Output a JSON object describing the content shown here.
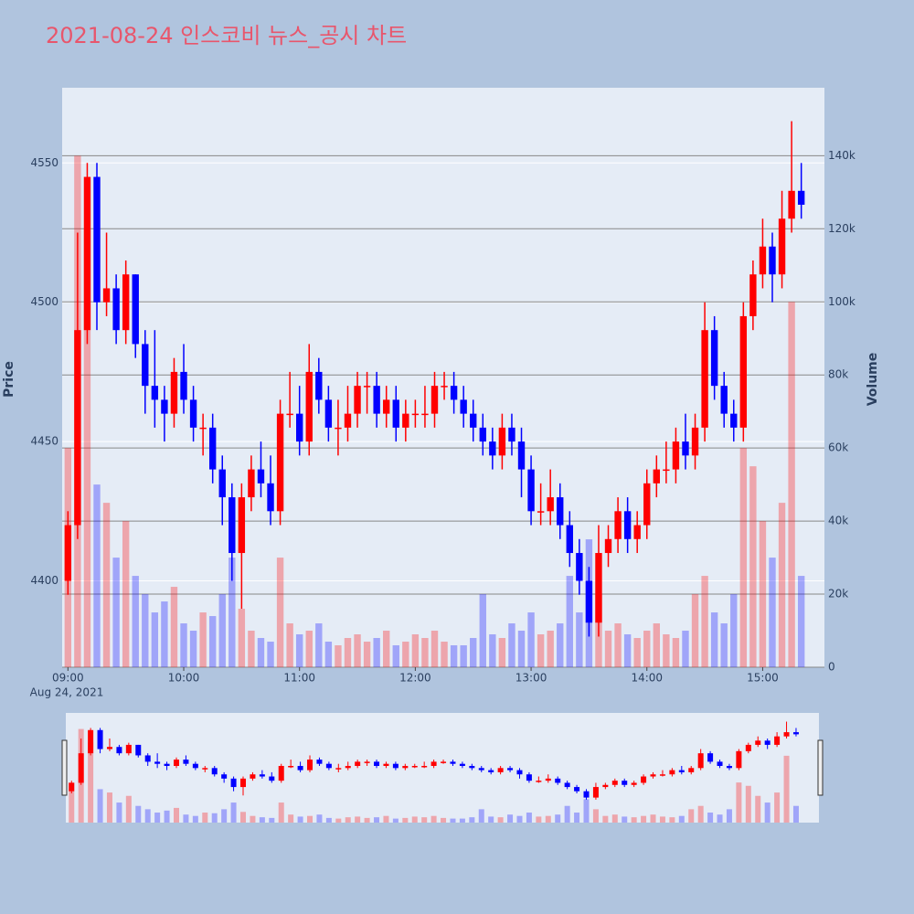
{
  "chart_data": {
    "type": "candlestick",
    "title": "2021-08-24 인스코비 뉴스_공시 차트",
    "y_label": "Price",
    "y2_label": "Volume",
    "x_date_label": "Aug 24, 2021",
    "x": [
      "09:00",
      "09:05",
      "09:10",
      "09:15",
      "09:20",
      "09:25",
      "09:30",
      "09:35",
      "09:40",
      "09:45",
      "09:50",
      "09:55",
      "10:00",
      "10:05",
      "10:10",
      "10:15",
      "10:20",
      "10:25",
      "10:30",
      "10:35",
      "10:40",
      "10:45",
      "10:50",
      "10:55",
      "11:00",
      "11:05",
      "11:10",
      "11:15",
      "11:20",
      "11:25",
      "11:30",
      "11:35",
      "11:40",
      "11:45",
      "11:50",
      "11:55",
      "12:00",
      "12:05",
      "12:10",
      "12:15",
      "12:20",
      "12:25",
      "12:30",
      "12:35",
      "12:40",
      "12:45",
      "12:50",
      "12:55",
      "13:00",
      "13:05",
      "13:10",
      "13:15",
      "13:20",
      "13:25",
      "13:30",
      "13:35",
      "13:40",
      "13:45",
      "13:50",
      "13:55",
      "14:00",
      "14:05",
      "14:10",
      "14:15",
      "14:20",
      "14:25",
      "14:30",
      "14:35",
      "14:40",
      "14:45",
      "14:50",
      "14:55",
      "15:00",
      "15:05",
      "15:10",
      "15:15",
      "15:20"
    ],
    "open": [
      4400,
      4420,
      4490,
      4545,
      4500,
      4505,
      4490,
      4510,
      4485,
      4470,
      4465,
      4460,
      4475,
      4465,
      4455,
      4455,
      4440,
      4430,
      4410,
      4430,
      4440,
      4435,
      4425,
      4460,
      4460,
      4450,
      4475,
      4465,
      4455,
      4455,
      4460,
      4470,
      4470,
      4460,
      4465,
      4455,
      4460,
      4460,
      4460,
      4470,
      4470,
      4465,
      4460,
      4455,
      4450,
      4445,
      4455,
      4450,
      4440,
      4425,
      4425,
      4430,
      4420,
      4410,
      4400,
      4385,
      4410,
      4415,
      4425,
      4415,
      4420,
      4435,
      4440,
      4440,
      4450,
      4445,
      4455,
      4490,
      4470,
      4460,
      4455,
      4495,
      4510,
      4520,
      4510,
      4530,
      4540
    ],
    "high": [
      4425,
      4525,
      4550,
      4550,
      4525,
      4510,
      4515,
      4510,
      4490,
      4490,
      4470,
      4480,
      4485,
      4470,
      4460,
      4460,
      4445,
      4435,
      4435,
      4445,
      4450,
      4445,
      4465,
      4475,
      4470,
      4485,
      4480,
      4470,
      4465,
      4470,
      4475,
      4475,
      4475,
      4470,
      4470,
      4465,
      4465,
      4470,
      4475,
      4475,
      4475,
      4470,
      4465,
      4460,
      4455,
      4460,
      4460,
      4455,
      4445,
      4435,
      4440,
      4435,
      4425,
      4415,
      4405,
      4420,
      4420,
      4430,
      4430,
      4425,
      4440,
      4445,
      4450,
      4455,
      4460,
      4460,
      4500,
      4495,
      4475,
      4465,
      4500,
      4515,
      4530,
      4525,
      4540,
      4565,
      4550
    ],
    "low": [
      4395,
      4415,
      4485,
      4490,
      4495,
      4485,
      4485,
      4480,
      4460,
      4455,
      4450,
      4455,
      4460,
      4450,
      4445,
      4435,
      4420,
      4400,
      4390,
      4425,
      4430,
      4420,
      4420,
      4455,
      4445,
      4445,
      4460,
      4450,
      4445,
      4450,
      4455,
      4460,
      4455,
      4455,
      4450,
      4450,
      4455,
      4455,
      4455,
      4465,
      4460,
      4455,
      4450,
      4445,
      4440,
      4440,
      4445,
      4430,
      4420,
      4420,
      4420,
      4415,
      4405,
      4395,
      4380,
      4380,
      4405,
      4410,
      4410,
      4410,
      4415,
      4430,
      4435,
      4435,
      4440,
      4440,
      4450,
      4465,
      4455,
      4450,
      4450,
      4490,
      4505,
      4500,
      4505,
      4525,
      4530
    ],
    "close": [
      4420,
      4490,
      4545,
      4500,
      4505,
      4490,
      4510,
      4485,
      4470,
      4465,
      4460,
      4475,
      4465,
      4455,
      4455,
      4440,
      4430,
      4410,
      4430,
      4440,
      4435,
      4425,
      4460,
      4460,
      4450,
      4475,
      4465,
      4455,
      4455,
      4460,
      4470,
      4470,
      4460,
      4465,
      4455,
      4460,
      4460,
      4460,
      4470,
      4470,
      4465,
      4460,
      4455,
      4450,
      4445,
      4455,
      4450,
      4440,
      4425,
      4425,
      4430,
      4420,
      4410,
      4400,
      4385,
      4410,
      4415,
      4425,
      4415,
      4420,
      4435,
      4440,
      4440,
      4450,
      4445,
      4455,
      4490,
      4470,
      4460,
      4455,
      4495,
      4510,
      4520,
      4510,
      4530,
      4540,
      4535
    ],
    "volume": [
      60000,
      140000,
      120000,
      50000,
      45000,
      30000,
      40000,
      25000,
      20000,
      15000,
      18000,
      22000,
      12000,
      10000,
      15000,
      14000,
      20000,
      30000,
      16000,
      10000,
      8000,
      7000,
      30000,
      12000,
      9000,
      10000,
      12000,
      7000,
      6000,
      8000,
      9000,
      7000,
      8000,
      10000,
      6000,
      7000,
      9000,
      8000,
      10000,
      7000,
      6000,
      6000,
      8000,
      20000,
      9000,
      8000,
      12000,
      10000,
      15000,
      9000,
      10000,
      12000,
      25000,
      15000,
      35000,
      20000,
      10000,
      12000,
      9000,
      8000,
      10000,
      12000,
      9000,
      8000,
      10000,
      20000,
      25000,
      15000,
      12000,
      20000,
      60000,
      55000,
      40000,
      30000,
      45000,
      100000,
      25000
    ],
    "increasing_color": "#ff0000",
    "decreasing_color": "#0000ff",
    "xlim": [
      "08:57",
      "15:32"
    ],
    "xticks": [
      "09:00",
      "10:00",
      "11:00",
      "12:00",
      "13:00",
      "14:00",
      "15:00"
    ],
    "ylim": [
      4369,
      4577
    ],
    "yticks": [
      4400,
      4450,
      4500,
      4550
    ],
    "y2lim": [
      0,
      158600
    ],
    "y2ticks": [
      {
        "value": 0,
        "label": "0"
      },
      {
        "value": 20000,
        "label": "20k"
      },
      {
        "value": 40000,
        "label": "40k"
      },
      {
        "value": 60000,
        "label": "60k"
      },
      {
        "value": 80000,
        "label": "80k"
      },
      {
        "value": 100000,
        "label": "100k"
      },
      {
        "value": 120000,
        "label": "120k"
      },
      {
        "value": 140000,
        "label": "140k"
      }
    ]
  }
}
